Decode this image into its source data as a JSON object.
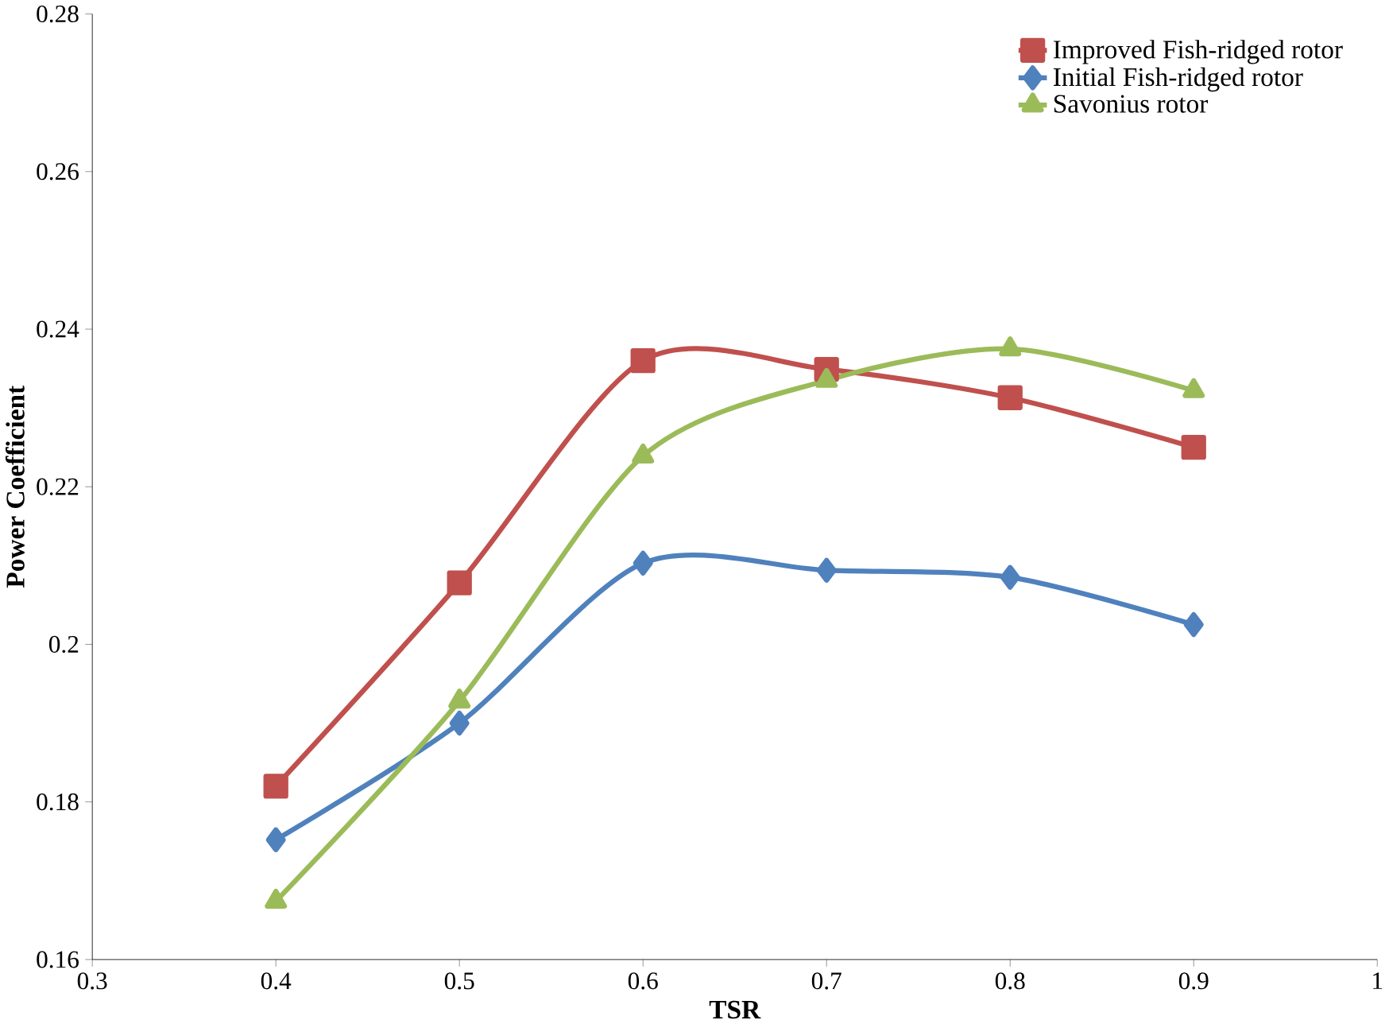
{
  "chart_data": {
    "type": "line",
    "xlabel": "TSR",
    "ylabel": "Power Coefficient",
    "x": [
      0.4,
      0.5,
      0.6,
      0.7,
      0.8,
      0.9
    ],
    "series": [
      {
        "name": "Improved Fish-ridged rotor",
        "color": "#c0504d",
        "marker": "square",
        "values": [
          0.182,
          0.2078,
          0.236,
          0.2349,
          0.2313,
          0.225
        ]
      },
      {
        "name": "Initial Fish-ridged rotor",
        "color": "#4f81bd",
        "marker": "diamond",
        "values": [
          0.1752,
          0.19,
          0.2103,
          0.2094,
          0.2085,
          0.2025
        ]
      },
      {
        "name": "Savonius rotor",
        "color": "#9bbb59",
        "marker": "triangle",
        "values": [
          0.1674,
          0.1928,
          0.2239,
          0.2335,
          0.2375,
          0.2322
        ]
      }
    ],
    "xlim": [
      0.3,
      1
    ],
    "xticks": [
      0.3,
      0.4,
      0.5,
      0.6,
      0.7,
      0.8,
      0.9,
      1
    ],
    "ylim": [
      0.16,
      0.28
    ],
    "yticks": [
      0.16,
      0.18,
      0.2,
      0.22,
      0.24,
      0.26,
      0.28
    ],
    "grid": false,
    "legend": "top right",
    "line_style": "solid"
  }
}
